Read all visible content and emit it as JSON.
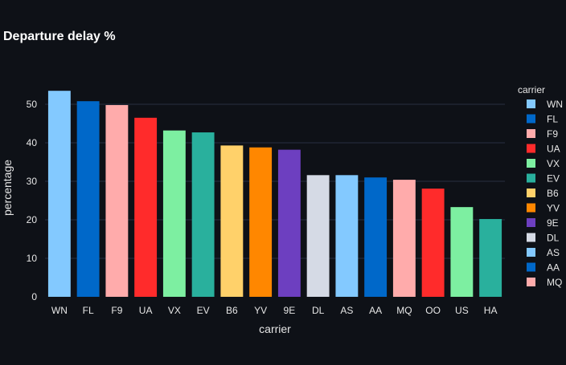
{
  "chart_data": {
    "type": "bar",
    "title": "Departure delay %",
    "xlabel": "carrier",
    "ylabel": "percentage",
    "ylim": [
      0,
      60
    ],
    "yticks": [
      0,
      10,
      20,
      30,
      40,
      50
    ],
    "grid": true,
    "legend": {
      "title": "carrier",
      "placement": "right",
      "entries": [
        {
          "name": "WN",
          "color": "#83c9ff"
        },
        {
          "name": "FL",
          "color": "#0068c9"
        },
        {
          "name": "F9",
          "color": "#ffabab"
        },
        {
          "name": "UA",
          "color": "#ff2b2b"
        },
        {
          "name": "VX",
          "color": "#7defa1"
        },
        {
          "name": "EV",
          "color": "#29b09d"
        },
        {
          "name": "B6",
          "color": "#ffd16a"
        },
        {
          "name": "YV",
          "color": "#ff8700"
        },
        {
          "name": "9E",
          "color": "#6d3fc0"
        },
        {
          "name": "DL",
          "color": "#d5dae5"
        },
        {
          "name": "AS",
          "color": "#83c9ff"
        },
        {
          "name": "AA",
          "color": "#0068c9"
        },
        {
          "name": "MQ",
          "color": "#ffabab"
        }
      ]
    },
    "categories": [
      "WN",
      "FL",
      "F9",
      "UA",
      "VX",
      "EV",
      "B6",
      "YV",
      "9E",
      "DL",
      "AS",
      "AA",
      "MQ",
      "OO",
      "US",
      "HA"
    ],
    "values": [
      53.5,
      50.8,
      49.8,
      46.5,
      43.2,
      42.7,
      39.3,
      38.8,
      38.2,
      31.6,
      31.6,
      31.0,
      30.4,
      28.1,
      23.3,
      20.2
    ],
    "colors": [
      "#83c9ff",
      "#0068c9",
      "#ffabab",
      "#ff2b2b",
      "#7defa1",
      "#29b09d",
      "#ffd16a",
      "#ff8700",
      "#6d3fc0",
      "#d5dae5",
      "#83c9ff",
      "#0068c9",
      "#ffabab",
      "#ff2b2b",
      "#7defa1",
      "#29b09d"
    ]
  }
}
